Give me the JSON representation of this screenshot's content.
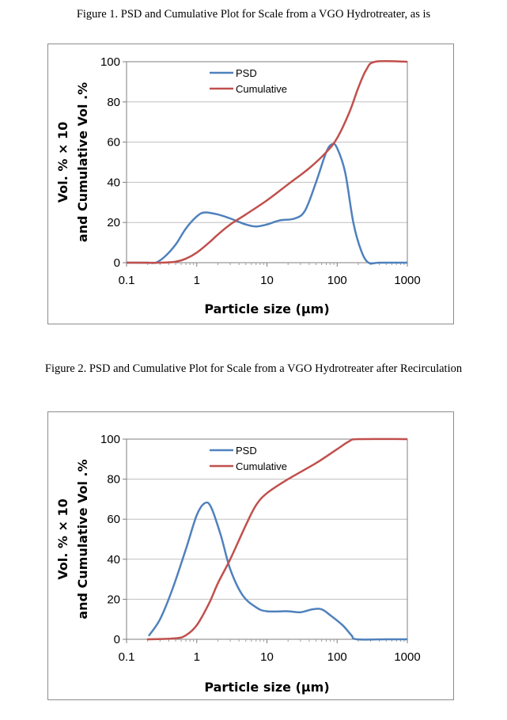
{
  "figures": [
    {
      "caption": "Figure 1. PSD and Cumulative Plot for Scale from a VGO Hydrotreater, as is"
    },
    {
      "caption": "Figure 2. PSD and Cumulative Plot for Scale from a VGO Hydrotreater after Recirculation"
    }
  ],
  "chart_data": [
    {
      "type": "line",
      "title": "",
      "xlabel": "Particle size (µm)",
      "ylabel_line1": "Vol. % × 10",
      "ylabel_line2": "and Cumulative Vol .%",
      "xscale": "log",
      "xlim": [
        0.1,
        1000
      ],
      "ylim": [
        0,
        100
      ],
      "xticks": [
        "0.1",
        "1",
        "10",
        "100",
        "1000"
      ],
      "yticks": [
        "0",
        "20",
        "40",
        "60",
        "80",
        "100"
      ],
      "grid": "horizontal",
      "legend": "top-center",
      "series": [
        {
          "name": "PSD",
          "color": "#4f81bd",
          "points": [
            [
              0.1,
              0
            ],
            [
              0.2,
              0
            ],
            [
              0.26,
              0
            ],
            [
              0.35,
              3
            ],
            [
              0.5,
              9
            ],
            [
              0.7,
              17
            ],
            [
              1.0,
              23
            ],
            [
              1.3,
              25
            ],
            [
              2.0,
              24
            ],
            [
              3.0,
              22
            ],
            [
              5.0,
              19
            ],
            [
              7.0,
              18
            ],
            [
              10,
              19
            ],
            [
              15,
              21
            ],
            [
              25,
              22
            ],
            [
              35,
              26
            ],
            [
              50,
              40
            ],
            [
              70,
              55
            ],
            [
              85,
              59
            ],
            [
              100,
              57
            ],
            [
              130,
              45
            ],
            [
              170,
              20
            ],
            [
              220,
              6
            ],
            [
              280,
              0
            ],
            [
              400,
              0
            ],
            [
              1000,
              0
            ]
          ]
        },
        {
          "name": "Cumulative",
          "color": "#c0504d",
          "points": [
            [
              0.1,
              0
            ],
            [
              0.3,
              0
            ],
            [
              0.5,
              0.5
            ],
            [
              0.7,
              2
            ],
            [
              1.0,
              5
            ],
            [
              1.5,
              10
            ],
            [
              2.0,
              14
            ],
            [
              3.0,
              19
            ],
            [
              5.0,
              24
            ],
            [
              10,
              31
            ],
            [
              20,
              39
            ],
            [
              40,
              47
            ],
            [
              70,
              55
            ],
            [
              100,
              62
            ],
            [
              150,
              75
            ],
            [
              200,
              87
            ],
            [
              260,
              96
            ],
            [
              350,
              100
            ],
            [
              1000,
              100
            ]
          ]
        }
      ]
    },
    {
      "type": "line",
      "title": "",
      "xlabel": "Particle size (µm)",
      "ylabel_line1": "Vol. % × 10",
      "ylabel_line2": "and Cumulative Vol .%",
      "xscale": "log",
      "xlim": [
        0.1,
        1000
      ],
      "ylim": [
        0,
        100
      ],
      "xticks": [
        "0.1",
        "1",
        "10",
        "100",
        "1000"
      ],
      "yticks": [
        "0",
        "20",
        "40",
        "60",
        "80",
        "100"
      ],
      "grid": "horizontal",
      "legend": "top-center",
      "series": [
        {
          "name": "PSD",
          "color": "#4f81bd",
          "points": [
            [
              0.21,
              2
            ],
            [
              0.3,
              10
            ],
            [
              0.45,
              25
            ],
            [
              0.7,
              45
            ],
            [
              1.0,
              62
            ],
            [
              1.3,
              68
            ],
            [
              1.6,
              66
            ],
            [
              2.2,
              52
            ],
            [
              3.0,
              35
            ],
            [
              4.5,
              22
            ],
            [
              7.0,
              16
            ],
            [
              10,
              14
            ],
            [
              20,
              14
            ],
            [
              30,
              13.5
            ],
            [
              45,
              15
            ],
            [
              60,
              15
            ],
            [
              80,
              12
            ],
            [
              120,
              7
            ],
            [
              160,
              2
            ],
            [
              190,
              0
            ],
            [
              500,
              0
            ],
            [
              1000,
              0
            ]
          ]
        },
        {
          "name": "Cumulative",
          "color": "#c0504d",
          "points": [
            [
              0.2,
              0
            ],
            [
              0.5,
              0.5
            ],
            [
              0.7,
              2
            ],
            [
              1.0,
              7
            ],
            [
              1.5,
              18
            ],
            [
              2.0,
              28
            ],
            [
              3.0,
              40
            ],
            [
              5.0,
              57
            ],
            [
              7.0,
              67
            ],
            [
              10,
              73
            ],
            [
              20,
              80
            ],
            [
              50,
              88
            ],
            [
              100,
              95
            ],
            [
              150,
              99
            ],
            [
              200,
              100
            ],
            [
              1000,
              100
            ]
          ]
        }
      ]
    }
  ]
}
